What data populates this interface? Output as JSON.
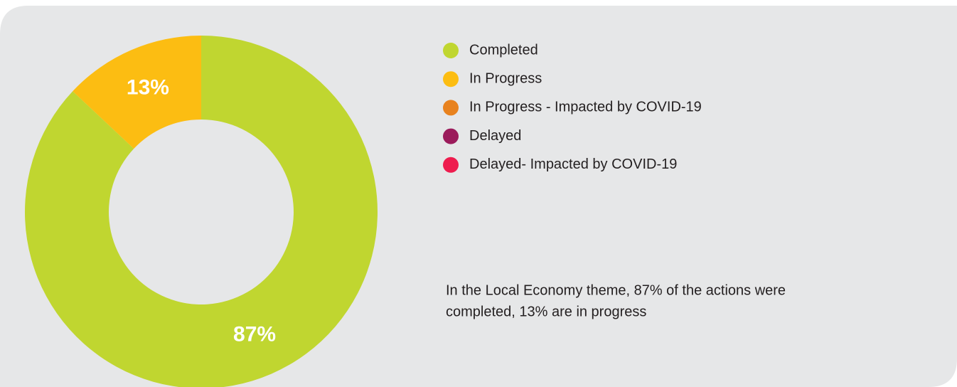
{
  "chart_data": {
    "type": "pie",
    "categories": [
      "Completed",
      "In Progress",
      "In Progress - Impacted by COVID-19",
      "Delayed",
      "Delayed- Impacted by COVID-19"
    ],
    "values": [
      87,
      13,
      0,
      0,
      0
    ],
    "value_labels": [
      "87%",
      "13%",
      null,
      null,
      null
    ],
    "colors": [
      "#c0d630",
      "#fcbd12",
      "#e8821e",
      "#9b1b5b",
      "#ee1c4e"
    ],
    "donut": true,
    "annotation": [
      "In the Local Economy theme, 87% of the actions were",
      "completed, 13% are in progress"
    ]
  }
}
